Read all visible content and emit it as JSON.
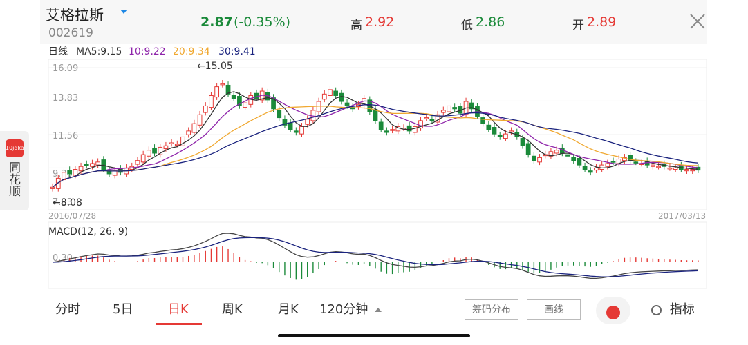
{
  "brand": {
    "logo_text": "10jqka",
    "name": "同花顺"
  },
  "header": {
    "stock_name": "艾格拉斯",
    "stock_code": "002619",
    "price": "2.87",
    "change": "(-0.35%)",
    "high_label": "高",
    "high_value": "2.92",
    "low_label": "低",
    "low_value": "2.86",
    "open_label": "开",
    "open_value": "2.89"
  },
  "indicators": {
    "period": "日线",
    "ma5": "MA5:9.15",
    "ma10": "10:9.22",
    "ma20": "20:9.34",
    "ma30": "30:9.41"
  },
  "colors": {
    "up": "#e53935",
    "down": "#1b8a3a",
    "ma5": "#333333",
    "ma10": "#8e24aa",
    "ma20": "#f0a830",
    "ma30": "#1a237e",
    "macd_dif": "#444444",
    "macd_dea": "#1a237e"
  },
  "chart_data": {
    "type": "candlestick",
    "y_ticks": [
      "16.09",
      "13.83",
      "11.56",
      "9.30",
      "7.03"
    ],
    "ylim": [
      7.03,
      16.09
    ],
    "x_start": "2016/07/28",
    "x_end": "2017/03/13",
    "max_label": "←15.05",
    "min_label": "←8.08",
    "closes": [
      8.0,
      8.6,
      9.0,
      8.9,
      9.2,
      9.4,
      9.5,
      9.6,
      9.7,
      9.2,
      8.9,
      9.1,
      9.0,
      9.3,
      9.4,
      9.8,
      10.2,
      10.5,
      10.3,
      10.7,
      10.8,
      11.0,
      10.9,
      11.4,
      11.8,
      12.3,
      12.9,
      13.5,
      14.2,
      14.8,
      15.0,
      14.3,
      14.0,
      13.5,
      13.7,
      14.2,
      14.0,
      14.5,
      13.9,
      13.3,
      12.7,
      12.2,
      11.9,
      11.7,
      12.1,
      12.6,
      13.2,
      13.8,
      14.3,
      14.6,
      14.2,
      13.8,
      13.5,
      13.3,
      13.6,
      14.0,
      13.1,
      12.5,
      11.9,
      11.7,
      11.9,
      12.1,
      12.0,
      11.8,
      12.1,
      12.5,
      12.7,
      12.5,
      12.9,
      13.2,
      13.5,
      13.3,
      13.0,
      13.8,
      13.3,
      12.8,
      12.3,
      11.9,
      11.6,
      11.4,
      11.6,
      11.8,
      11.4,
      10.8,
      10.2,
      9.8,
      10.0,
      10.2,
      10.4,
      10.5,
      10.3,
      10.1,
      9.8,
      9.5,
      9.2,
      9.0,
      9.3,
      9.5,
      9.6,
      9.7,
      9.9,
      10.0,
      9.8,
      9.7,
      9.6,
      9.5,
      9.5,
      9.4,
      9.4,
      9.3,
      9.3,
      9.2,
      9.2,
      9.2,
      9.15
    ],
    "macd_zero_label": "0.30",
    "macd_title": "MACD(12, 26, 9)"
  },
  "tabs": [
    "分时",
    "5日",
    "日K",
    "周K",
    "月K",
    "120分钟"
  ],
  "buttons": {
    "chips": "筹码分布",
    "draw": "画线",
    "indicator": "指标"
  }
}
